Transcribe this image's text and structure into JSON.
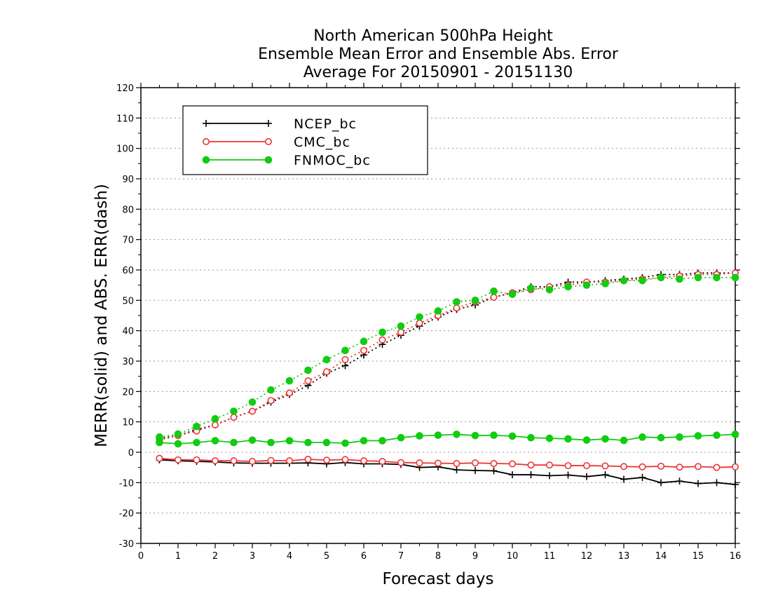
{
  "chart_data": {
    "type": "line",
    "title_lines": [
      "North American 500hPa Height",
      "Ensemble Mean Error and Ensemble Abs. Error",
      "Average For 20150901 - 20151130"
    ],
    "xlabel": "Forecast days",
    "ylabel": "MERR(solid) and ABS. ERR(dash)",
    "xlim": [
      0,
      16
    ],
    "ylim": [
      -30,
      120
    ],
    "xticks": [
      0,
      1,
      2,
      3,
      4,
      5,
      6,
      7,
      8,
      9,
      10,
      11,
      12,
      13,
      14,
      15,
      16
    ],
    "yticks": [
      -30,
      -20,
      -10,
      0,
      10,
      20,
      30,
      40,
      50,
      60,
      70,
      80,
      90,
      100,
      110,
      120
    ],
    "grid": "horizontal-dotted",
    "legend_position": "top-left",
    "x": [
      0.5,
      1,
      1.5,
      2,
      2.5,
      3,
      3.5,
      4,
      4.5,
      5,
      5.5,
      6,
      6.5,
      7,
      7.5,
      8,
      8.5,
      9,
      9.5,
      10,
      10.5,
      11,
      11.5,
      12,
      12.5,
      13,
      13.5,
      14,
      14.5,
      15,
      15.5,
      16
    ],
    "series": [
      {
        "name": "NCEP_bc",
        "color": "#000000",
        "marker": "plus",
        "merr": [
          -2.5,
          -2.8,
          -3,
          -3.2,
          -3.5,
          -3.6,
          -3.6,
          -3.6,
          -3.5,
          -3.8,
          -3.4,
          -3.8,
          -3.8,
          -4,
          -5,
          -4.8,
          -5.8,
          -6,
          -6.1,
          -7.4,
          -7.4,
          -7.7,
          -7.5,
          -8,
          -7.4,
          -8.9,
          -8.3,
          -10,
          -9.5,
          -10.3,
          -10,
          -10.6
        ],
        "abs_err": [
          4.5,
          5.5,
          7.5,
          9,
          11.5,
          13.5,
          16.5,
          19,
          22,
          26,
          28.5,
          32,
          35.5,
          38.5,
          41.5,
          44.5,
          47,
          48.5,
          51,
          52.5,
          54.5,
          54.5,
          56,
          56,
          56.5,
          57,
          57.5,
          58.5,
          58.5,
          59,
          59,
          59
        ]
      },
      {
        "name": "CMC_bc",
        "color": "#ee3333",
        "marker": "open-circle",
        "merr": [
          -2,
          -2.5,
          -2.5,
          -2.8,
          -2.8,
          -3,
          -2.7,
          -2.8,
          -2.3,
          -2.6,
          -2.4,
          -2.8,
          -3,
          -3.4,
          -3.5,
          -3.6,
          -3.7,
          -3.5,
          -3.7,
          -3.8,
          -4.2,
          -4.2,
          -4.4,
          -4.4,
          -4.5,
          -4.7,
          -4.8,
          -4.6,
          -4.9,
          -4.7,
          -5,
          -4.8
        ],
        "abs_err": [
          4,
          5.5,
          7,
          9,
          11.5,
          13.5,
          17,
          19.5,
          23.5,
          26.5,
          30.5,
          33.5,
          37,
          39.5,
          42.5,
          45,
          47.5,
          49.5,
          51,
          52.5,
          53.5,
          54.5,
          55,
          56,
          56,
          56.5,
          57,
          57.5,
          58,
          58.5,
          58.5,
          59
        ]
      },
      {
        "name": "FNMOC_bc",
        "color": "#11cc11",
        "marker": "filled-circle",
        "merr": [
          3.2,
          2.8,
          3.2,
          3.8,
          3.2,
          4,
          3.2,
          3.8,
          3.2,
          3.2,
          3,
          3.8,
          3.8,
          4.8,
          5.4,
          5.6,
          5.9,
          5.5,
          5.6,
          5.3,
          4.8,
          4.6,
          4.4,
          4,
          4.4,
          3.9,
          5,
          4.8,
          5,
          5.4,
          5.6,
          5.9
        ],
        "abs_err": [
          5,
          6,
          8.5,
          11,
          13.5,
          16.5,
          20.5,
          23.5,
          27,
          30.5,
          33.5,
          36.5,
          39.5,
          41.5,
          44.5,
          46.5,
          49.5,
          50,
          53,
          52,
          54,
          53.5,
          54.5,
          55,
          55.5,
          56.5,
          56.5,
          57.5,
          57,
          57.5,
          57.5,
          57.5
        ]
      }
    ]
  }
}
